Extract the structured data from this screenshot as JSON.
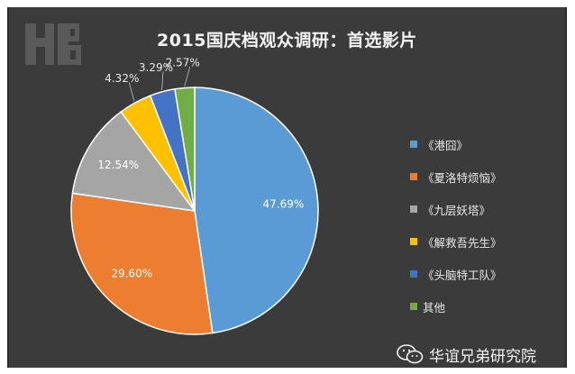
{
  "chart_data": {
    "type": "pie",
    "title": "2015国庆档观众调研：首选影片",
    "slices": [
      {
        "name": "《港囧》",
        "value": 47.69,
        "label": "47.69%",
        "color": "#5b9bd5"
      },
      {
        "name": "《夏洛特烦恼》",
        "value": 29.6,
        "label": "29.60%",
        "color": "#ed7d31"
      },
      {
        "name": "《九层妖塔》",
        "value": 12.54,
        "label": "12.54%",
        "color": "#a5a5a5"
      },
      {
        "name": "《解救吾先生》",
        "value": 4.32,
        "label": "4.32%",
        "color": "#ffc000"
      },
      {
        "name": "《头脑特工队》",
        "value": 3.29,
        "label": "3.29%",
        "color": "#4472c4"
      },
      {
        "name": "其他",
        "value": 2.57,
        "label": "2.57%",
        "color": "#70ad47"
      }
    ],
    "legend_position": "right"
  },
  "watermark": {
    "text": "华谊兄弟研究院",
    "icon": "wechat-icon"
  },
  "logo": {
    "icon": "hb-logo-icon"
  }
}
